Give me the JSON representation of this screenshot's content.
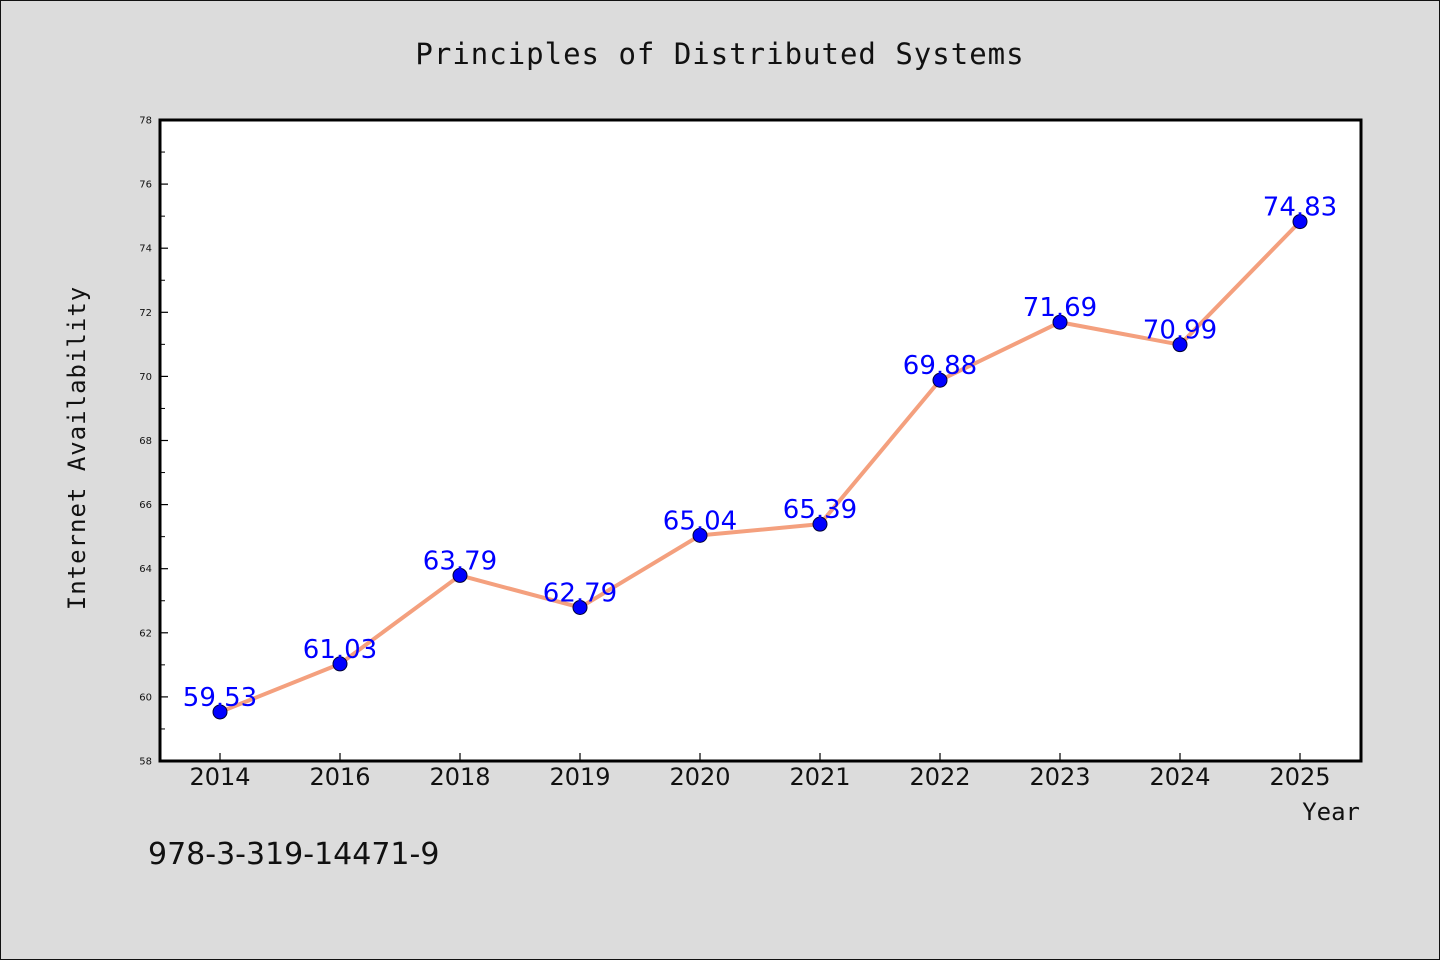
{
  "chart_data": {
    "type": "line",
    "title": "Principles of Distributed Systems",
    "xlabel": "Year",
    "ylabel": "Internet Availability",
    "categories": [
      "2014",
      "2016",
      "2018",
      "2019",
      "2020",
      "2021",
      "2022",
      "2023",
      "2024",
      "2025"
    ],
    "series": [
      {
        "values": [
          59.53,
          61.03,
          63.79,
          62.79,
          65.04,
          65.39,
          69.88,
          71.69,
          70.99,
          74.83
        ],
        "data_labels": [
          "59.53",
          "61.03",
          "63.79",
          "62.79",
          "65.04",
          "65.39",
          "69.88",
          "71.69",
          "70.99",
          "74.83"
        ]
      }
    ],
    "ylim": [
      58,
      78
    ],
    "yticks": [
      58,
      60,
      62,
      64,
      66,
      68,
      70,
      72,
      74,
      76,
      78
    ],
    "ytick_labels": [
      "58",
      "60",
      "62",
      "64",
      "66",
      "68",
      "70",
      "72",
      "74",
      "76",
      "78"
    ],
    "grid": false,
    "legend": "none",
    "colors": {
      "line": "#f4a07e",
      "marker": "#0000ff",
      "data_label": "#0000ff",
      "background": "#dcdcdc",
      "plot_area": "#ffffff"
    }
  },
  "annotation": "978-3-319-14471-9"
}
